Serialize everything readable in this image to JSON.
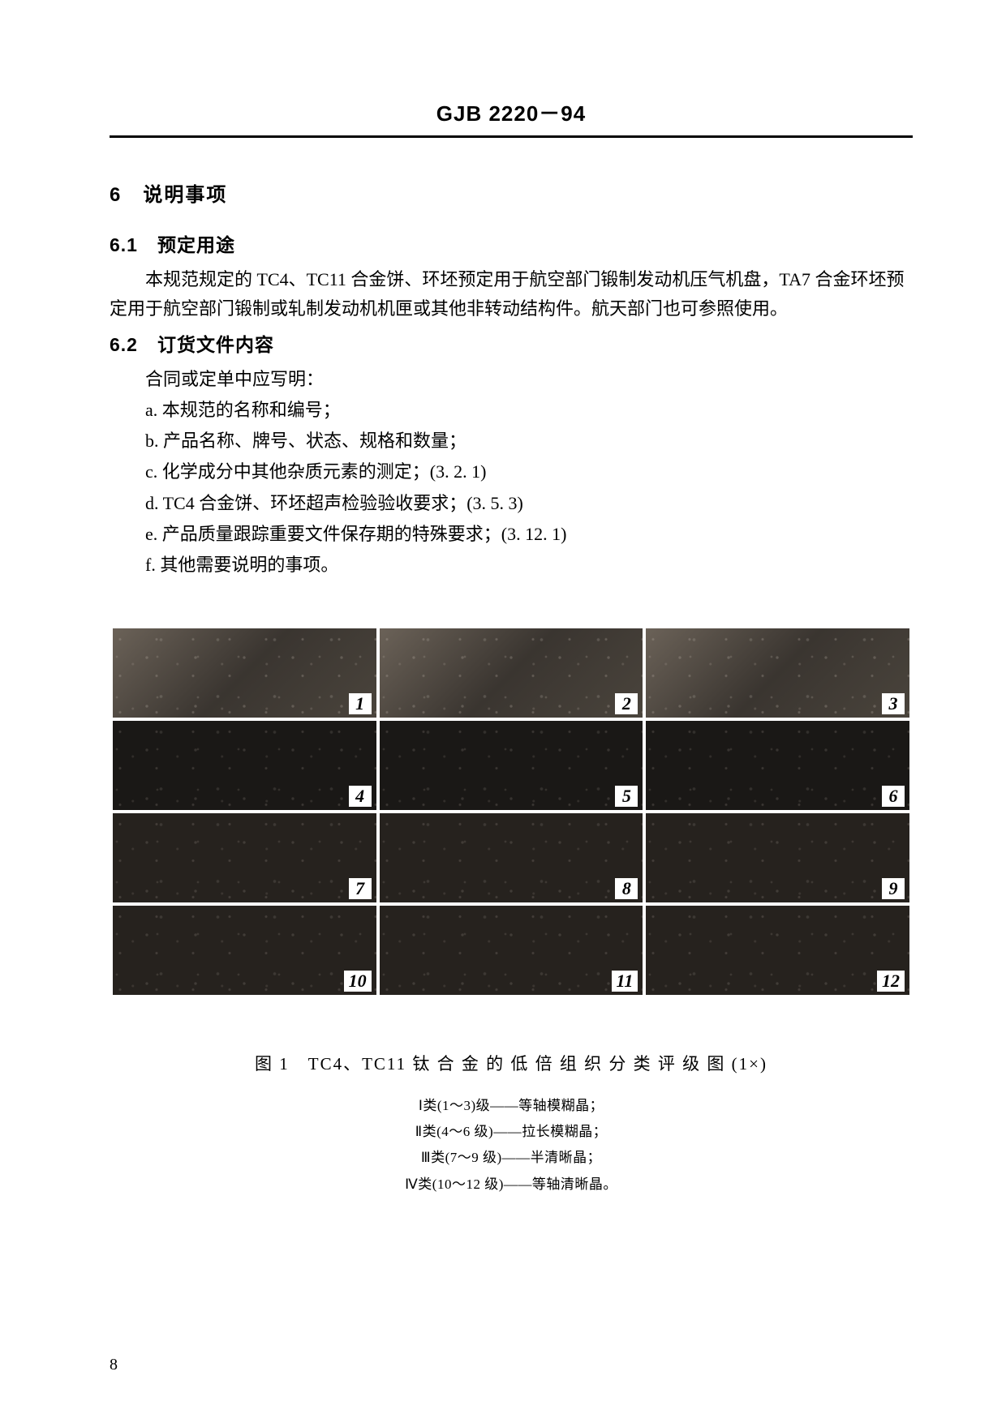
{
  "header": {
    "standard_code": "GJB 2220－94"
  },
  "section6": {
    "number": "6",
    "title": "说明事项"
  },
  "section6_1": {
    "number": "6.1",
    "title": "预定用途",
    "paragraph": "本规范规定的 TC4、TC11 合金饼、环坯预定用于航空部门锻制发动机压气机盘，TA7 合金环坯预定用于航空部门锻制或轧制发动机机匣或其他非转动结构件。航天部门也可参照使用。"
  },
  "section6_2": {
    "number": "6.2",
    "title": "订货文件内容",
    "intro": "合同或定单中应写明：",
    "items": [
      "a. 本规范的名称和编号；",
      "b. 产品名称、牌号、状态、规格和数量；",
      "c. 化学成分中其他杂质元素的测定；(3. 2. 1)",
      "d. TC4 合金饼、环坯超声检验验收要求；(3. 5. 3)",
      "e. 产品质量跟踪重要文件保存期的特殊要求；(3. 12. 1)",
      "f. 其他需要说明的事项。"
    ]
  },
  "figure": {
    "cells": [
      {
        "n": "1",
        "shade": "light"
      },
      {
        "n": "2",
        "shade": "light"
      },
      {
        "n": "3",
        "shade": "light"
      },
      {
        "n": "4",
        "shade": "dark"
      },
      {
        "n": "5",
        "shade": "dark"
      },
      {
        "n": "6",
        "shade": "dark"
      },
      {
        "n": "7",
        "shade": "medium"
      },
      {
        "n": "8",
        "shade": "medium"
      },
      {
        "n": "9",
        "shade": "medium"
      },
      {
        "n": "10",
        "shade": "medium"
      },
      {
        "n": "11",
        "shade": "medium"
      },
      {
        "n": "12",
        "shade": "medium"
      }
    ],
    "title": "图 1　TC4、TC11 钛 合 金 的 低 倍 组 织 分 类 评 级 图 (1×)",
    "legend": [
      "Ⅰ类(1～3)级——等轴模糊晶；",
      "Ⅱ类(4～6 级)——拉长模糊晶；",
      "Ⅲ类(7～9 级)——半清晰晶；",
      "Ⅳ类(10～12 级)——等轴清晰晶。"
    ]
  },
  "page_number": "8"
}
